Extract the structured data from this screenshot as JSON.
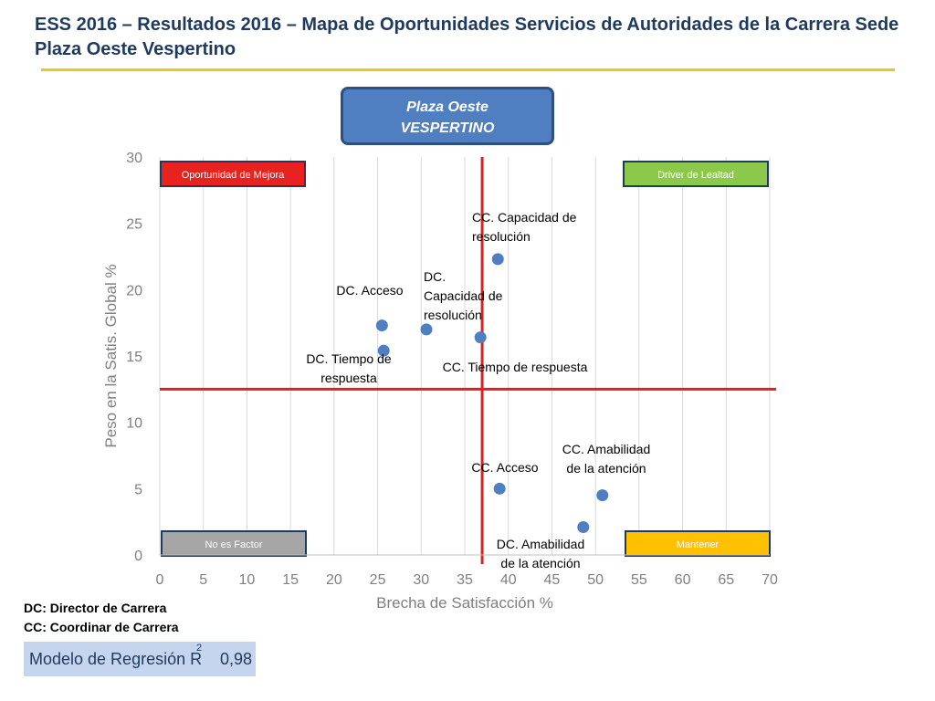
{
  "title": "ESS 2016 – Resultados 2016 – Mapa de Oportunidades Servicios de Autoridades de la Carrera Sede Plaza Oeste Vespertino",
  "badge": {
    "line1": "Plaza Oeste",
    "line2": "VESPERTINO"
  },
  "colors": {
    "accent_rule": "#f0c419",
    "point": "#4f7fc0",
    "threshold": "#e02020"
  },
  "quadrants": {
    "top_left": {
      "label": "Oportunidad de Mejora",
      "color": "#e8231f"
    },
    "top_right": {
      "label": "Driver de Lealtad",
      "color": "#8cc94a"
    },
    "bottom_left": {
      "label": "No es Factor",
      "color": "#a6a6a6"
    },
    "bottom_right": {
      "label": "Mantener",
      "color": "#ffc000"
    }
  },
  "chart_data": {
    "type": "scatter",
    "xlabel": "Brecha de Satisfacción %",
    "ylabel": "Peso en la Satis. Global %",
    "xlim": [
      0,
      70
    ],
    "ylim": [
      0,
      30
    ],
    "x_ticks": [
      0,
      5,
      10,
      15,
      20,
      25,
      30,
      35,
      40,
      45,
      50,
      55,
      60,
      65,
      70
    ],
    "y_ticks": [
      0,
      5,
      10,
      15,
      20,
      25,
      30
    ],
    "grid": "vertical",
    "threshold_x": 37,
    "threshold_y": 12.5,
    "points": [
      {
        "label": "CC. Capacidad de resolución",
        "x": 38.8,
        "y": 22.3
      },
      {
        "label": "DC. Acceso",
        "x": 25.5,
        "y": 17.3
      },
      {
        "label": "DC. Capacidad de resolución",
        "x": 30.6,
        "y": 17.0
      },
      {
        "label": "CC. Tiempo de respuesta",
        "x": 36.8,
        "y": 16.4
      },
      {
        "label": "DC. Tiempo de respuesta",
        "x": 25.7,
        "y": 15.4
      },
      {
        "label": "CC. Acceso",
        "x": 39.0,
        "y": 5.0
      },
      {
        "label": "CC. Amabilidad de la atención",
        "x": 50.8,
        "y": 4.5
      },
      {
        "label": "DC. Amabilidad de la atención",
        "x": 48.6,
        "y": 2.1
      }
    ]
  },
  "notes": {
    "dc": "DC: Director de Carrera",
    "cc": "CC: Coordinar de Carrera"
  },
  "model": {
    "label": "Modelo de Regresión R",
    "sup": "2",
    "value": "0,98"
  }
}
